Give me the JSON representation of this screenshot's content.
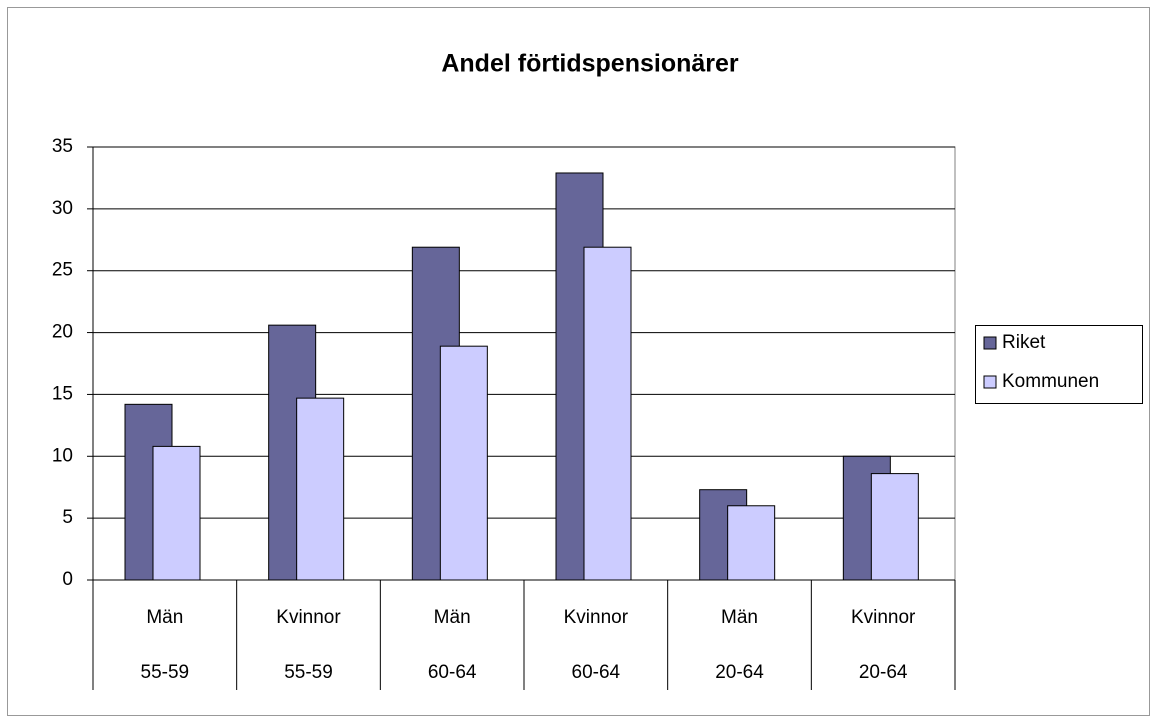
{
  "chart_data": {
    "type": "bar",
    "title": "Andel förtidspensionärer",
    "categories": [
      [
        "Män",
        "55-59"
      ],
      [
        "Kvinnor",
        "55-59"
      ],
      [
        "Män",
        "60-64"
      ],
      [
        "Kvinnor",
        "60-64"
      ],
      [
        "Män",
        "20-64"
      ],
      [
        "Kvinnor",
        "20-64"
      ]
    ],
    "series": [
      {
        "name": "Riket",
        "color": "#666699",
        "values": [
          14.2,
          20.6,
          26.9,
          32.9,
          7.3,
          10.0
        ]
      },
      {
        "name": "Kommunen",
        "color": "#ccccff",
        "values": [
          10.8,
          14.7,
          18.9,
          26.9,
          6.0,
          8.6
        ]
      }
    ],
    "ylim": [
      0,
      35
    ],
    "yticks": [
      0,
      5,
      10,
      15,
      20,
      25,
      30,
      35
    ],
    "grid": true,
    "legend": "right"
  }
}
